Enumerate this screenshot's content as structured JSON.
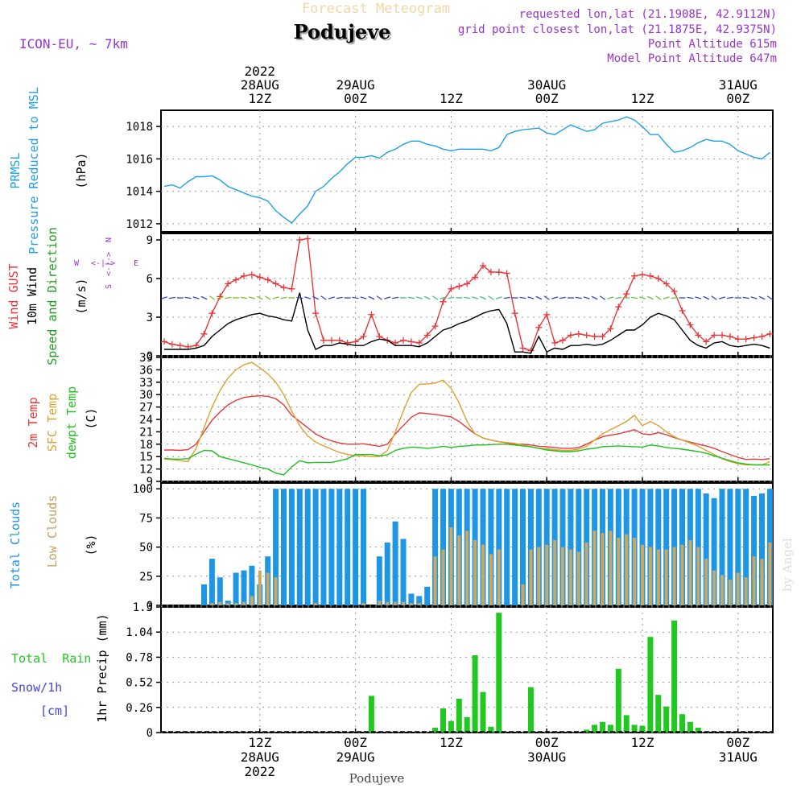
{
  "header": {
    "title": "Forecast Meteogram",
    "location": "Podujeve",
    "model": "ICON-EU, ~ 7km",
    "requested": "requested lon,lat (21.1908E, 42.9112N)",
    "grid": "grid point closest lon,lat (21.1875E, 42.9375N)",
    "point_altitude": "Point Altitude 615m",
    "model_altitude": "Model Point Altitude 647m",
    "footer_location": "Podujeve",
    "watermark": "by Angel"
  },
  "colors": {
    "pressure": "#1ea0e6",
    "gust": "#e8383c",
    "wind": "#000000",
    "temp": "#e8383c",
    "sfc": "#e0a030",
    "dew": "#20c020",
    "total_clouds": "#1e96e6",
    "low_clouds": "#c8a864",
    "rain": "#20c820",
    "snow": "#4444dd",
    "direction": "#9933cc",
    "header": "#9933cc"
  },
  "axis": {
    "top_ticks": [
      {
        "t": 12,
        "lines": [
          "2022",
          "28AUG",
          "12Z"
        ]
      },
      {
        "t": 24,
        "lines": [
          "29AUG",
          "00Z"
        ]
      },
      {
        "t": 36,
        "lines": [
          "12Z"
        ]
      },
      {
        "t": 48,
        "lines": [
          "30AUG",
          "00Z"
        ]
      },
      {
        "t": 60,
        "lines": [
          "12Z"
        ]
      },
      {
        "t": 72,
        "lines": [
          "31AUG",
          "00Z"
        ]
      }
    ],
    "bottom_ticks": [
      {
        "t": 12,
        "lines": [
          "12Z",
          "28AUG",
          "2022"
        ]
      },
      {
        "t": 24,
        "lines": [
          "00Z",
          "29AUG"
        ]
      },
      {
        "t": 36,
        "lines": [
          "12Z"
        ]
      },
      {
        "t": 48,
        "lines": [
          "00Z",
          "30AUG"
        ]
      },
      {
        "t": 60,
        "lines": [
          "12Z"
        ]
      },
      {
        "t": 72,
        "lines": [
          "00Z",
          "31AUG"
        ]
      }
    ]
  },
  "labels": {
    "pressure": {
      "line1": "PRMSL",
      "line2": "Pressure Reduced to MSL",
      "unit": "(hPa)"
    },
    "wind": {
      "gust": "Wind GUST",
      "wind10": "10m Wind",
      "dir": "Speed and Direction",
      "unit": "(m/s)"
    },
    "compass": {
      "n": "N",
      "s": "S",
      "w": "W",
      "e": "E",
      "mid": "<-|->",
      "vert": "<-|->"
    },
    "temp": {
      "t2m": "2m Temp",
      "sfc": "SFC Temp",
      "dew": "dewpt Temp",
      "unit": "(C)"
    },
    "clouds": {
      "total": "Total Clouds",
      "low": "Low Clouds",
      "unit": "(%)"
    },
    "precip": {
      "rain": "Total  Rain",
      "snow": "Snow/1h",
      "snow_unit": "[cm]",
      "unit": "1hr Precip (mm)"
    }
  },
  "chart_data": [
    {
      "type": "line",
      "name": "pressure",
      "ylim": [
        1011.5,
        1019
      ],
      "yticks": [
        "1012",
        "1014",
        "1016",
        "1018"
      ],
      "x": [
        0,
        1,
        2,
        3,
        4,
        5,
        6,
        7,
        8,
        9,
        10,
        11,
        12,
        13,
        14,
        15,
        16,
        17,
        18,
        19,
        20,
        21,
        22,
        23,
        24,
        25,
        26,
        27,
        28,
        29,
        30,
        31,
        32,
        33,
        34,
        35,
        36,
        37,
        38,
        39,
        40,
        41,
        42,
        43,
        44,
        45,
        46,
        47,
        48,
        49,
        50,
        51,
        52,
        53,
        54,
        55,
        56,
        57,
        58,
        59,
        60,
        61,
        62,
        63,
        64,
        65,
        66,
        67,
        68,
        69,
        70,
        71,
        72,
        73,
        74,
        75,
        76
      ],
      "series": [
        {
          "values": [
            1014.3,
            1014.4,
            1014.2,
            1014.6,
            1014.9,
            1014.9,
            1014.95,
            1014.7,
            1014.3,
            1014.1,
            1013.9,
            1013.7,
            1013.6,
            1013.4,
            1012.8,
            1012.4,
            1012.05,
            1012.6,
            1013.1,
            1014.0,
            1014.3,
            1014.8,
            1015.2,
            1015.7,
            1016.1,
            1016.1,
            1016.2,
            1016.05,
            1016.4,
            1016.6,
            1016.9,
            1017.1,
            1017.1,
            1016.9,
            1016.8,
            1016.6,
            1016.5,
            1016.6,
            1016.6,
            1016.6,
            1016.6,
            1016.5,
            1016.7,
            1017.5,
            1017.7,
            1017.8,
            1017.85,
            1017.9,
            1017.6,
            1017.5,
            1017.8,
            1018.1,
            1017.9,
            1017.7,
            1017.8,
            1018.2,
            1018.3,
            1018.4,
            1018.6,
            1018.4,
            1018.0,
            1017.5,
            1017.5,
            1016.9,
            1016.4,
            1016.5,
            1016.7,
            1017.0,
            1017.2,
            1017.1,
            1017.1,
            1016.9,
            1016.5,
            1016.3,
            1016.1,
            1016.0,
            1016.4
          ]
        }
      ]
    },
    {
      "type": "line",
      "name": "wind",
      "ylim": [
        0,
        9.5
      ],
      "yticks": [
        "0",
        "3",
        "6",
        "9"
      ],
      "x_start": 0,
      "series": [
        {
          "name": "Wind GUST",
          "values": [
            1.1,
            0.9,
            0.8,
            0.7,
            0.8,
            1.7,
            3.3,
            4.6,
            5.6,
            5.9,
            6.2,
            6.3,
            6.1,
            5.9,
            5.6,
            5.3,
            5.2,
            9.0,
            9.1,
            3.3,
            1.2,
            1.2,
            1.2,
            1.0,
            1.1,
            1.5,
            3.2,
            1.5,
            1.2,
            1.0,
            1.2,
            1.1,
            1.0,
            1.6,
            2.3,
            4.2,
            5.2,
            5.4,
            5.6,
            6.1,
            7.0,
            6.5,
            6.5,
            6.4,
            3.3,
            0.6,
            0.4,
            2.2,
            3.2,
            1.0,
            1.2,
            1.6,
            1.7,
            1.6,
            1.5,
            1.5,
            2.1,
            3.8,
            4.8,
            6.2,
            6.3,
            6.2,
            6.0,
            5.6,
            5.0,
            3.5,
            2.4,
            1.6,
            1.1,
            1.6,
            1.6,
            1.5,
            1.3,
            1.3,
            1.4,
            1.5,
            1.7
          ]
        },
        {
          "name": "10m Wind",
          "values": [
            0.5,
            0.5,
            0.5,
            0.5,
            0.6,
            0.8,
            1.5,
            2.0,
            2.5,
            2.8,
            3.0,
            3.2,
            3.3,
            3.1,
            3.0,
            2.8,
            2.7,
            4.9,
            2.0,
            0.5,
            0.8,
            0.8,
            1.0,
            0.9,
            0.8,
            0.8,
            1.1,
            1.3,
            1.2,
            0.8,
            0.8,
            0.8,
            0.7,
            1.0,
            1.5,
            2.0,
            2.2,
            2.5,
            2.7,
            3.0,
            3.3,
            3.5,
            3.6,
            2.5,
            0.3,
            0.3,
            0.2,
            1.5,
            0.3,
            0.6,
            0.5,
            0.8,
            0.8,
            0.9,
            0.8,
            0.9,
            1.2,
            1.6,
            2.0,
            2.0,
            2.4,
            3.0,
            3.3,
            3.1,
            2.8,
            2.0,
            1.2,
            0.8,
            0.6,
            1.0,
            1.1,
            0.8,
            0.7,
            0.8,
            0.9,
            0.8,
            0.6
          ]
        }
      ]
    },
    {
      "type": "line",
      "name": "temperature",
      "ylim": [
        9,
        39
      ],
      "yticks": [
        "9",
        "12",
        "15",
        "18",
        "21",
        "24",
        "27",
        "30",
        "33",
        "36",
        "39"
      ],
      "series": [
        {
          "name": "2m Temp",
          "values": [
            16.6,
            16.6,
            16.5,
            16.7,
            18.0,
            21.0,
            23.8,
            25.8,
            27.5,
            28.6,
            29.3,
            29.6,
            29.7,
            29.6,
            29.0,
            27.5,
            25.0,
            23.5,
            22.0,
            20.5,
            19.5,
            18.8,
            18.3,
            18.0,
            18.0,
            18.1,
            17.8,
            17.5,
            18.0,
            20.5,
            22.5,
            24.5,
            25.6,
            25.4,
            25.2,
            24.9,
            24.6,
            23.5,
            22.0,
            20.5,
            19.5,
            19.0,
            18.6,
            18.3,
            18.0,
            18.0,
            17.8,
            17.5,
            17.4,
            17.2,
            17.0,
            17.0,
            17.2,
            18.0,
            19.0,
            19.8,
            20.2,
            20.5,
            21.0,
            21.5,
            20.5,
            20.3,
            20.8,
            20.3,
            19.6,
            19.0,
            18.5,
            18.0,
            17.6,
            17.0,
            16.2,
            15.5,
            14.8,
            14.3,
            14.4,
            14.3,
            14.5
          ]
        },
        {
          "name": "SFC Temp",
          "values": [
            14.4,
            14.3,
            14.0,
            13.8,
            17.0,
            22.0,
            27.0,
            31.0,
            34.0,
            36.0,
            37.2,
            37.8,
            36.5,
            35.0,
            33.0,
            30.0,
            26.0,
            22.5,
            20.0,
            18.5,
            17.6,
            16.8,
            16.0,
            15.5,
            15.2,
            15.2,
            15.0,
            15.0,
            16.5,
            21.0,
            26.0,
            30.5,
            32.5,
            32.6,
            32.8,
            33.5,
            31.5,
            28.0,
            23.5,
            20.5,
            19.5,
            19.0,
            18.6,
            18.4,
            18.2,
            17.8,
            17.4,
            17.0,
            16.9,
            16.7,
            16.5,
            16.5,
            16.8,
            17.5,
            19.0,
            20.5,
            21.5,
            22.5,
            23.5,
            25.0,
            22.5,
            23.5,
            22.5,
            21.0,
            19.8,
            19.0,
            18.3,
            17.5,
            16.5,
            15.5,
            14.5,
            13.8,
            13.3,
            13.0,
            13.0,
            13.0,
            13.8
          ]
        },
        {
          "name": "dewpt Temp",
          "values": [
            14.6,
            14.4,
            14.4,
            14.5,
            15.6,
            16.5,
            16.4,
            15.0,
            14.5,
            14.0,
            13.5,
            13.0,
            12.4,
            12.0,
            11.0,
            10.6,
            12.5,
            14.0,
            13.5,
            13.6,
            13.6,
            13.6,
            14.0,
            14.5,
            15.5,
            15.5,
            15.5,
            15.2,
            15.4,
            16.5,
            17.0,
            17.3,
            17.2,
            17.0,
            17.2,
            17.5,
            17.2,
            17.5,
            17.6,
            17.8,
            17.8,
            17.9,
            18.0,
            18.0,
            17.8,
            17.6,
            17.4,
            17.0,
            16.6,
            16.4,
            16.2,
            16.2,
            16.4,
            16.8,
            17.0,
            17.4,
            17.5,
            17.6,
            17.5,
            17.4,
            17.3,
            17.8,
            17.6,
            17.2,
            17.0,
            16.8,
            16.5,
            16.2,
            15.8,
            15.2,
            14.6,
            14.0,
            13.5,
            13.2,
            13.0,
            13.0,
            13.0
          ]
        }
      ]
    },
    {
      "type": "bar",
      "name": "clouds",
      "ylim": [
        0,
        105
      ],
      "yticks": [
        "0",
        "25",
        "50",
        "75",
        "100"
      ],
      "series": [
        {
          "name": "Total Clouds",
          "values": [
            0,
            0,
            0,
            0,
            0,
            18,
            40,
            24,
            4,
            28,
            30,
            34,
            18,
            42,
            100,
            100,
            100,
            100,
            100,
            100,
            100,
            100,
            100,
            100,
            100,
            100,
            0,
            42,
            54,
            72,
            57,
            10,
            8,
            16,
            100,
            100,
            100,
            100,
            100,
            100,
            100,
            100,
            100,
            100,
            100,
            100,
            100,
            100,
            100,
            100,
            100,
            100,
            100,
            100,
            100,
            100,
            100,
            100,
            100,
            100,
            100,
            100,
            100,
            100,
            100,
            100,
            100,
            100,
            96,
            92,
            100,
            100,
            100,
            100,
            94,
            96,
            100
          ]
        },
        {
          "name": "Low Clouds",
          "values": [
            0,
            0,
            0,
            0,
            0,
            0,
            2,
            3,
            2,
            2,
            3,
            8,
            30,
            28,
            24,
            0,
            0,
            0,
            0,
            2,
            0,
            0,
            0,
            0,
            0,
            2,
            0,
            4,
            3,
            3,
            3,
            2,
            2,
            0,
            42,
            48,
            67,
            60,
            64,
            56,
            52,
            44,
            48,
            0,
            0,
            18,
            48,
            50,
            52,
            56,
            50,
            48,
            46,
            54,
            64,
            62,
            64,
            58,
            61,
            58,
            52,
            50,
            48,
            48,
            50,
            52,
            56,
            50,
            40,
            30,
            26,
            22,
            28,
            24,
            42,
            40,
            54
          ]
        }
      ]
    },
    {
      "type": "bar",
      "name": "precipitation",
      "ylim": [
        0,
        1.3
      ],
      "yticks": [
        "0",
        "0.26",
        "0.52",
        "0.78",
        "1.04",
        "1.3"
      ],
      "series": [
        {
          "name": "Total Rain",
          "values": [
            0,
            0,
            0,
            0,
            0,
            0,
            0,
            0,
            0,
            0,
            0,
            0,
            0,
            0,
            0,
            0,
            0,
            0,
            0,
            0,
            0,
            0,
            0,
            0,
            0,
            0,
            0.38,
            0,
            0,
            0,
            0,
            0,
            0,
            0,
            0.05,
            0.25,
            0.12,
            0.35,
            0.16,
            0.8,
            0.42,
            0.06,
            1.24,
            0,
            0,
            0,
            0.47,
            0,
            0,
            0,
            0,
            0,
            0,
            0.03,
            0.08,
            0.11,
            0.08,
            0.66,
            0.18,
            0.08,
            0.07,
            0.99,
            0.39,
            0.27,
            1.16,
            0.19,
            0.11,
            0.05,
            0,
            0,
            0,
            0,
            0,
            0,
            0,
            0,
            0
          ]
        }
      ]
    }
  ]
}
